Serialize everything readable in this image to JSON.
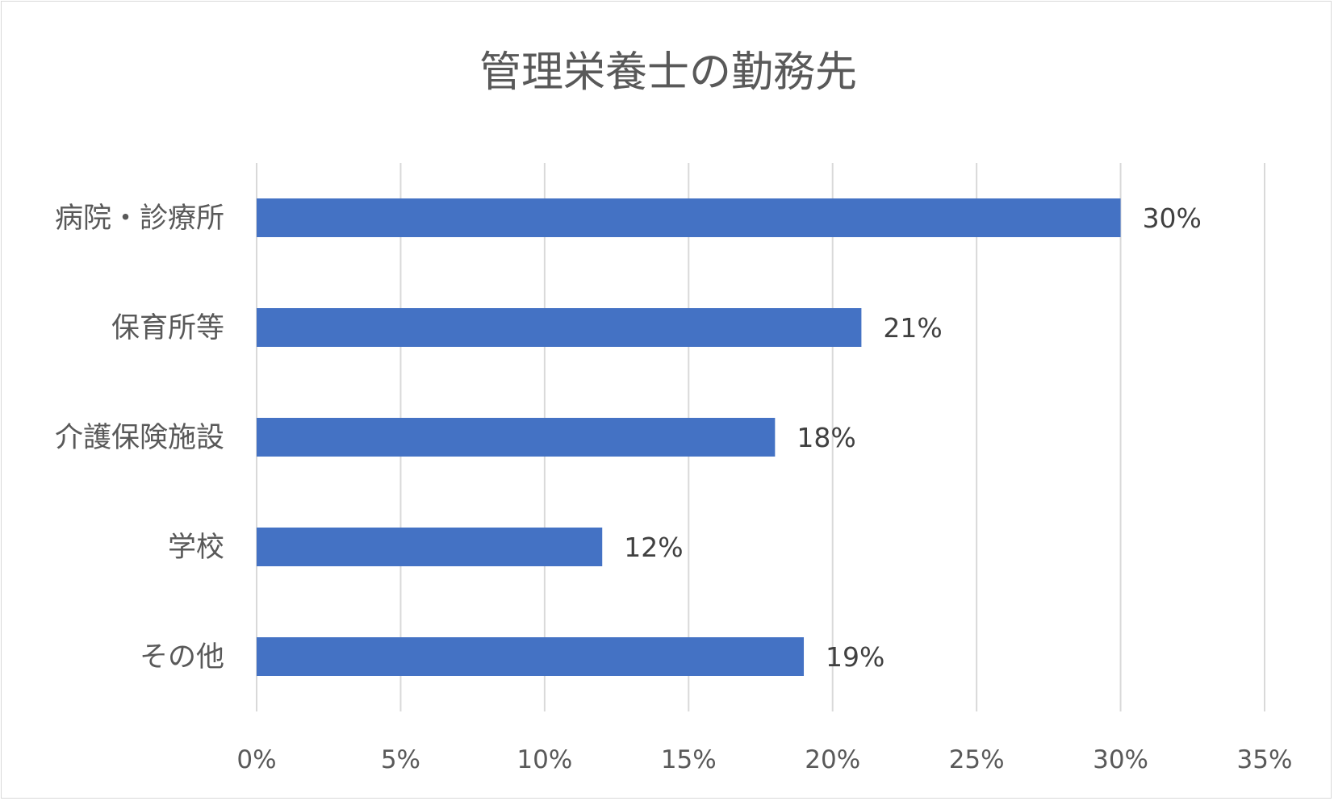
{
  "chart_data": {
    "type": "bar",
    "orientation": "horizontal",
    "title": "管理栄養士の勤務先",
    "categories": [
      "病院・診療所",
      "保育所等",
      "介護保険施設",
      "学校",
      "その他"
    ],
    "values": [
      30,
      21,
      18,
      12,
      19
    ],
    "value_labels": [
      "30%",
      "21%",
      "18%",
      "12%",
      "19%"
    ],
    "xlim": [
      0,
      35
    ],
    "x_ticks": [
      0,
      5,
      10,
      15,
      20,
      25,
      30,
      35
    ],
    "x_tick_labels": [
      "0%",
      "5%",
      "10%",
      "15%",
      "20%",
      "25%",
      "30%",
      "35%"
    ],
    "xlabel": "",
    "ylabel": "",
    "grid": "vertical",
    "legend": "none",
    "bar_color": "#4472c4"
  }
}
